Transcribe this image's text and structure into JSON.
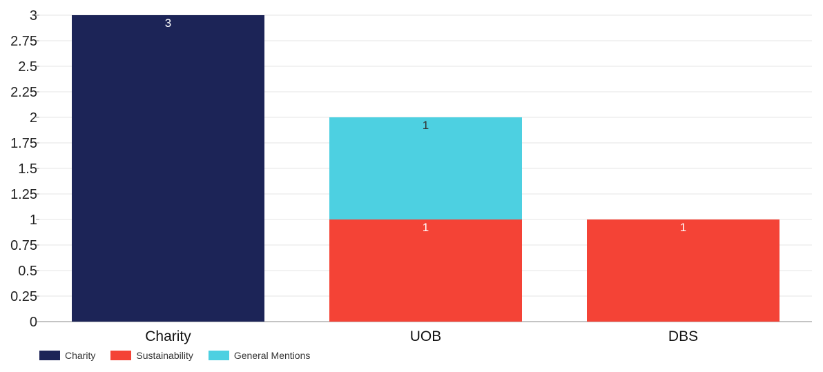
{
  "chart_data": {
    "type": "bar",
    "stacked": true,
    "categories": [
      "Charity",
      "UOB",
      "DBS"
    ],
    "series": [
      {
        "name": "Charity",
        "color": "#1c2457",
        "values": [
          3,
          0,
          0
        ],
        "label_color": "#ffffff"
      },
      {
        "name": "Sustainability",
        "color": "#f44336",
        "values": [
          0,
          1,
          1
        ],
        "label_color": "#ffffff"
      },
      {
        "name": "General Mentions",
        "color": "#4dd0e1",
        "values": [
          0,
          1,
          0
        ],
        "label_color": "#333333"
      }
    ],
    "ylim": [
      0,
      3
    ],
    "yticks": [
      "0",
      "0.25",
      "0.5",
      "0.75",
      "1",
      "1.25",
      "1.5",
      "1.75",
      "2",
      "2.25",
      "2.5",
      "2.75",
      "3"
    ],
    "grid": true,
    "legend_position": "bottom-left",
    "xlabel": "",
    "ylabel": "",
    "title": ""
  }
}
